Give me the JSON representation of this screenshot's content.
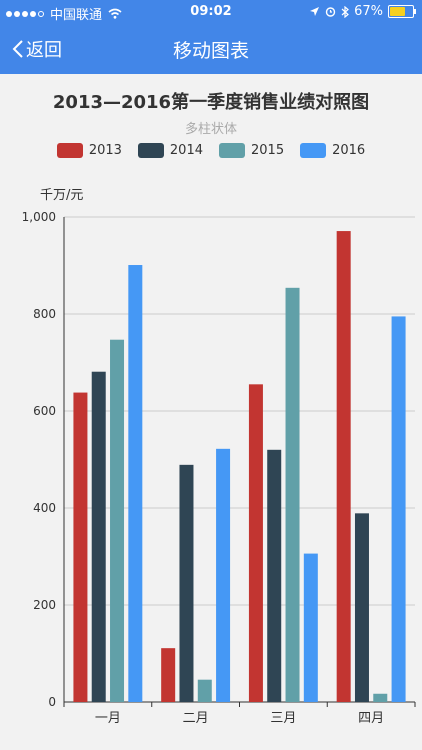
{
  "status": {
    "carrier": "中国联通",
    "time": "09:02",
    "battery": "67%",
    "battery_level": 0.67
  },
  "nav": {
    "back_label": "返回",
    "title": "移动图表"
  },
  "chart_data": {
    "type": "bar",
    "title": "2013—2016第一季度销售业绩对照图",
    "subtitle": "多柱状体",
    "ylabel": "千万/元",
    "categories": [
      "一月",
      "二月",
      "三月",
      "四月"
    ],
    "ylim": [
      0,
      1000
    ],
    "yticks": [
      0,
      200,
      400,
      600,
      800,
      1000
    ],
    "ytick_labels": [
      "0",
      "200",
      "400",
      "600",
      "800",
      "1,000"
    ],
    "grid": true,
    "legend_position": "top-center",
    "series": [
      {
        "name": "2013",
        "color": "#c23531",
        "values": [
          638,
          111,
          655,
          971
        ]
      },
      {
        "name": "2014",
        "color": "#2f4554",
        "values": [
          681,
          489,
          520,
          389
        ]
      },
      {
        "name": "2015",
        "color": "#61a0a8",
        "values": [
          747,
          46,
          854,
          17
        ]
      },
      {
        "name": "2016",
        "color": "#4598f5",
        "values": [
          901,
          522,
          306,
          795
        ]
      }
    ]
  }
}
